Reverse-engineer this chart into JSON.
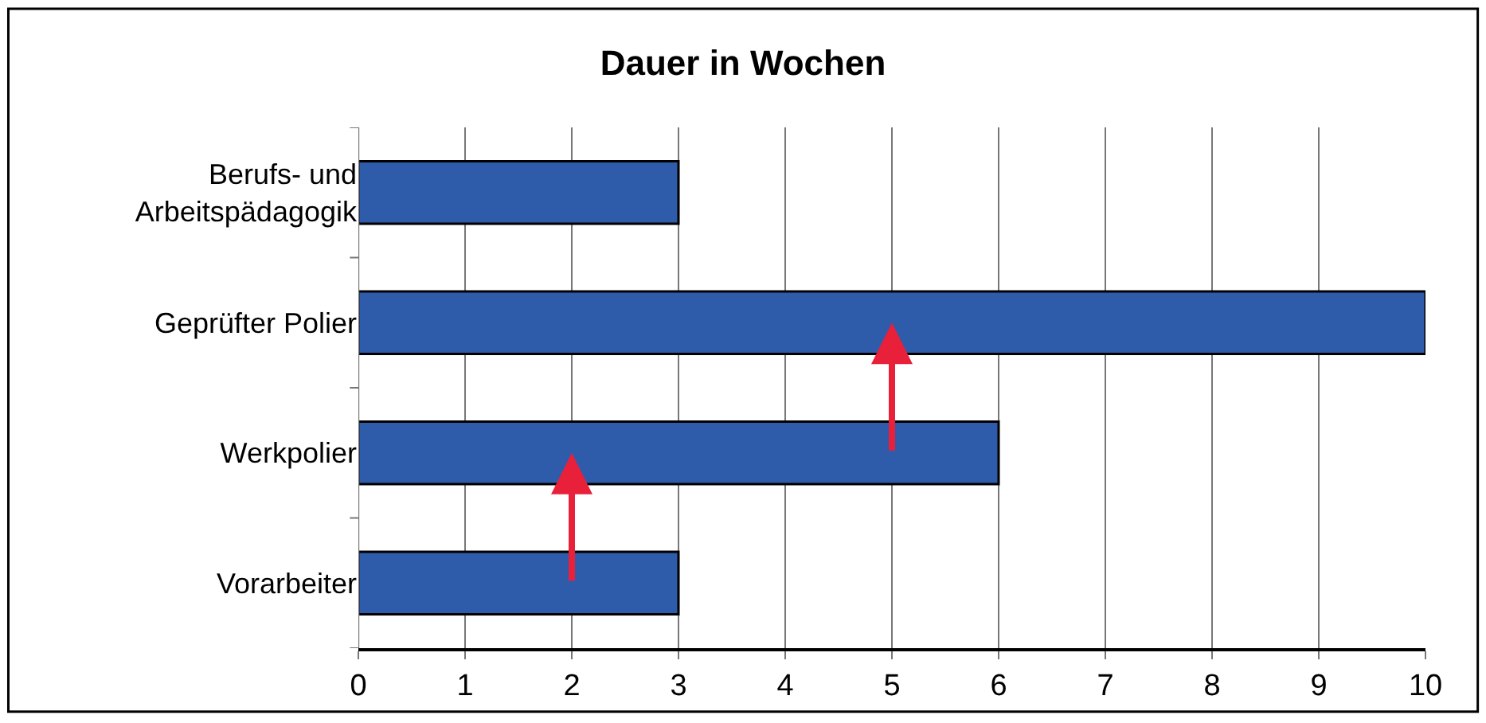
{
  "chart_data": {
    "type": "bar",
    "orientation": "horizontal",
    "title": "Dauer in Wochen",
    "categories": [
      "Berufs- und\nArbeitspädagogik",
      "Geprüfter Polier",
      "Werkpolier",
      "Vorarbeiter"
    ],
    "values": [
      3,
      10,
      6,
      3
    ],
    "color": "#2f5caa",
    "xlim": [
      0,
      10
    ],
    "xticks": [
      0,
      1,
      2,
      3,
      4,
      5,
      6,
      7,
      8,
      9,
      10
    ],
    "grid": "x"
  }
}
